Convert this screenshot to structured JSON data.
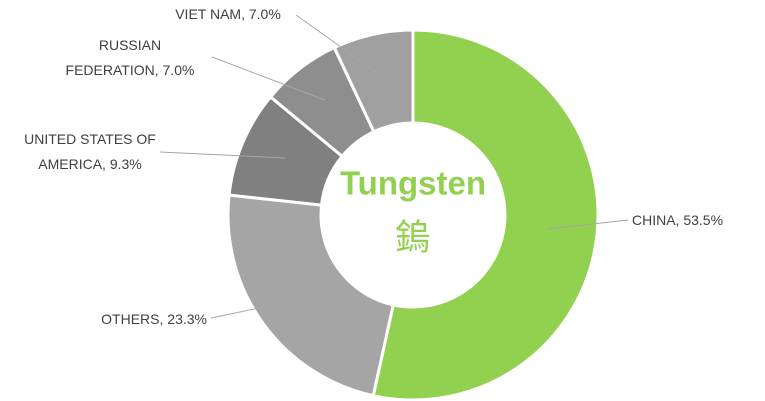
{
  "chart_data": {
    "type": "donut",
    "center_title": "Tungsten",
    "center_subtitle": "鎢",
    "center_color": "#92d050",
    "values": [
      53.5,
      23.3,
      9.3,
      7.0,
      7.0
    ],
    "value_labels": [
      "CHINA, 53.5%",
      "OTHERS, 23.3%",
      "UNITED STATES OF\nAMERICA, 9.3%",
      "RUSSIAN\nFEDERATION, 7.0%",
      "VIET NAM, 7.0%"
    ],
    "colors": [
      "#92d050",
      "#a5a5a5",
      "#808080",
      "#8e8e8e",
      "#a0a0a0"
    ]
  }
}
